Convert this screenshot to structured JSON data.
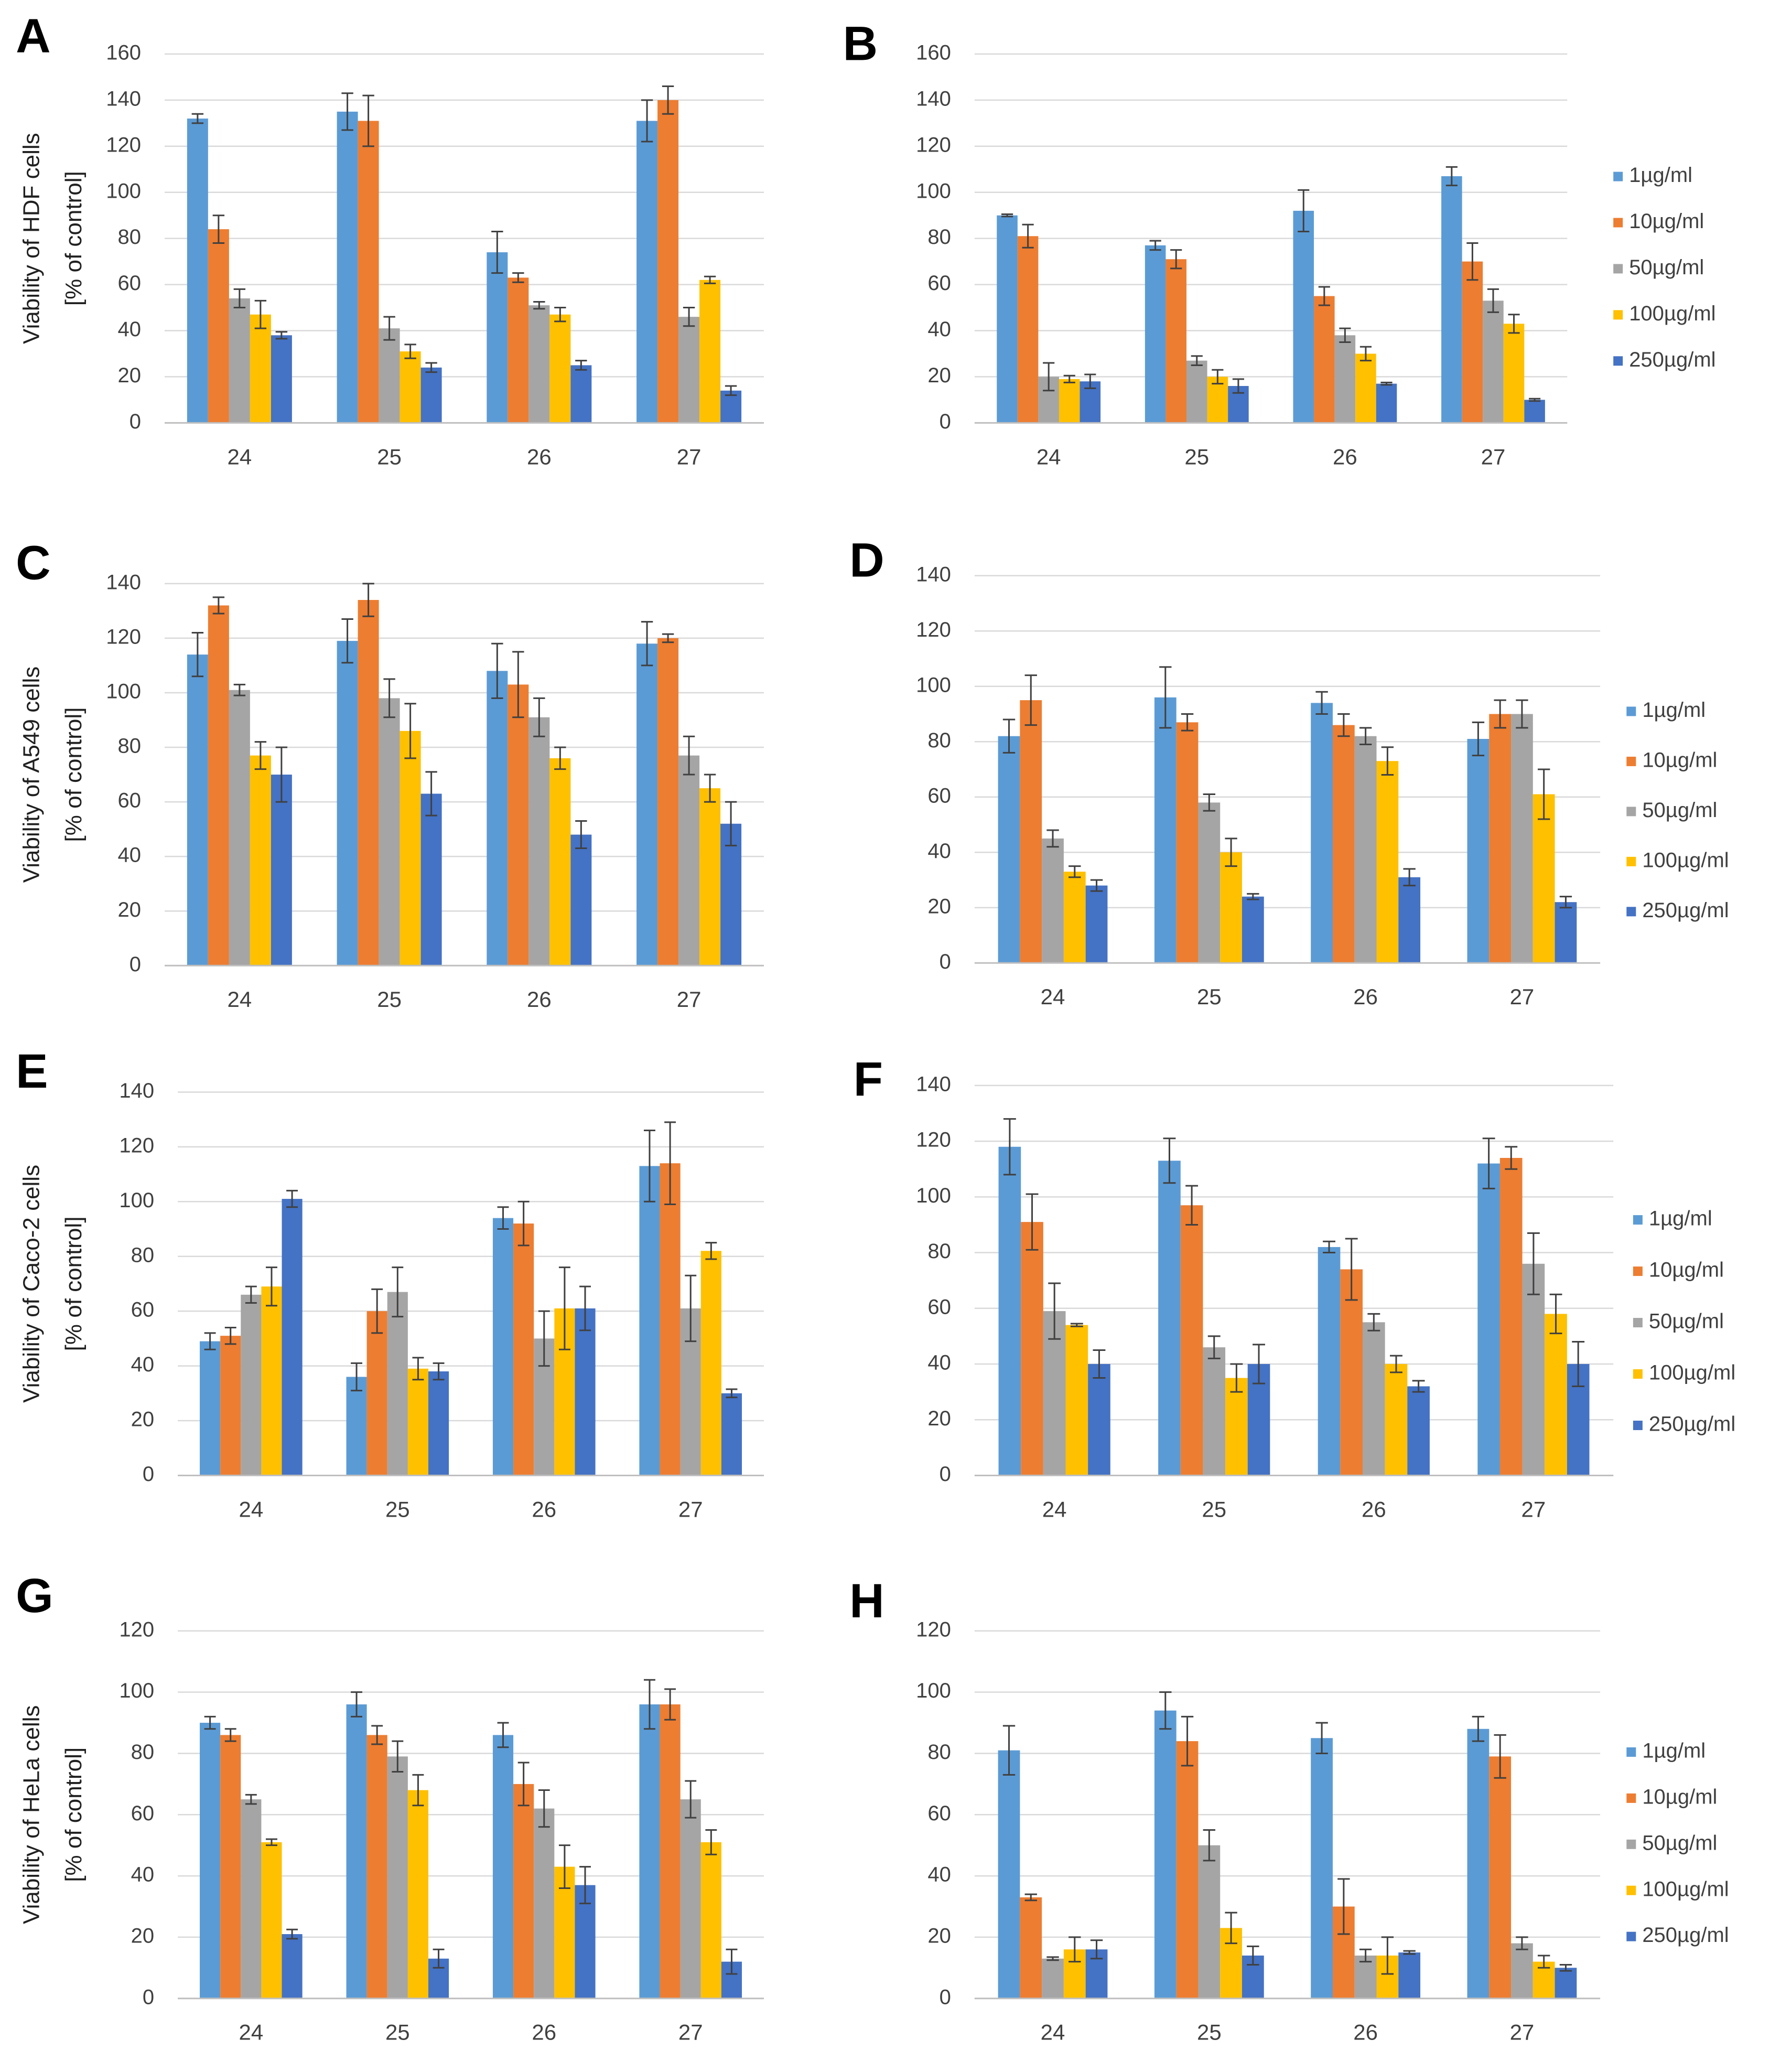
{
  "chart_data": [
    {
      "type": "bar",
      "panel": "A",
      "ylabel": [
        "Viability of HDF cells",
        "[% of control]"
      ],
      "categories": [
        "24",
        "25",
        "26",
        "27"
      ],
      "ylim": [
        0,
        160
      ],
      "yticks": [
        0,
        20,
        40,
        60,
        80,
        100,
        120,
        140,
        160
      ],
      "grid": true,
      "series": [
        {
          "color": "#5b9bd5",
          "values": [
            132,
            135,
            74,
            131
          ],
          "errors": [
            2,
            8,
            9,
            9
          ]
        },
        {
          "color": "#ed7d31",
          "values": [
            84,
            131,
            63,
            140
          ],
          "errors": [
            6,
            11,
            2,
            6
          ]
        },
        {
          "color": "#a5a5a5",
          "values": [
            54,
            41,
            51,
            46
          ],
          "errors": [
            4,
            5,
            1.5,
            4
          ]
        },
        {
          "color": "#ffc000",
          "values": [
            47,
            31,
            47,
            62
          ],
          "errors": [
            6,
            3,
            3,
            1.5
          ]
        },
        {
          "color": "#4472c4",
          "values": [
            38,
            24,
            25,
            14
          ],
          "errors": [
            1.5,
            2,
            2,
            2
          ]
        }
      ]
    },
    {
      "type": "bar",
      "panel": "B",
      "categories": [
        "24",
        "25",
        "26",
        "27"
      ],
      "ylim": [
        0,
        160
      ],
      "yticks": [
        0,
        20,
        40,
        60,
        80,
        100,
        120,
        140,
        160
      ],
      "grid": true,
      "legend": "right",
      "series": [
        {
          "name": "1µg/ml",
          "color": "#5b9bd5",
          "values": [
            90,
            77,
            92,
            107
          ],
          "errors": [
            0.5,
            2,
            9,
            4
          ]
        },
        {
          "name": "10µg/ml",
          "color": "#ed7d31",
          "values": [
            81,
            71,
            55,
            70
          ],
          "errors": [
            5,
            4,
            4,
            8
          ]
        },
        {
          "name": "50µg/ml",
          "color": "#a5a5a5",
          "values": [
            20,
            27,
            38,
            53
          ],
          "errors": [
            6,
            2,
            3,
            5
          ]
        },
        {
          "name": "100µg/ml",
          "color": "#ffc000",
          "values": [
            19,
            20,
            30,
            43
          ],
          "errors": [
            1.5,
            3,
            3,
            4
          ]
        },
        {
          "name": "250µg/ml",
          "color": "#4472c4",
          "values": [
            18,
            16,
            17,
            10
          ],
          "errors": [
            3,
            3,
            0.5,
            0.5
          ]
        }
      ]
    },
    {
      "type": "bar",
      "panel": "C",
      "ylabel": [
        "Viability of A549 cells",
        "[% of control]"
      ],
      "categories": [
        "24",
        "25",
        "26",
        "27"
      ],
      "ylim": [
        0,
        140
      ],
      "yticks": [
        0,
        20,
        40,
        60,
        80,
        100,
        120,
        140
      ],
      "grid": true,
      "series": [
        {
          "color": "#5b9bd5",
          "values": [
            114,
            119,
            108,
            118
          ],
          "errors": [
            8,
            8,
            10,
            8
          ]
        },
        {
          "color": "#ed7d31",
          "values": [
            132,
            134,
            103,
            120
          ],
          "errors": [
            3,
            6,
            12,
            1.5
          ]
        },
        {
          "color": "#a5a5a5",
          "values": [
            101,
            98,
            91,
            77
          ],
          "errors": [
            2,
            7,
            7,
            7
          ]
        },
        {
          "color": "#ffc000",
          "values": [
            77,
            86,
            76,
            65
          ],
          "errors": [
            5,
            10,
            4,
            5
          ]
        },
        {
          "color": "#4472c4",
          "values": [
            70,
            63,
            48,
            52
          ],
          "errors": [
            10,
            8,
            5,
            8
          ]
        }
      ]
    },
    {
      "type": "bar",
      "panel": "D",
      "categories": [
        "24",
        "25",
        "26",
        "27"
      ],
      "ylim": [
        0,
        140
      ],
      "yticks": [
        0,
        20,
        40,
        60,
        80,
        100,
        120,
        140
      ],
      "grid": true,
      "legend": "right",
      "series": [
        {
          "name": "1µg/ml",
          "color": "#5b9bd5",
          "values": [
            82,
            96,
            94,
            81
          ],
          "errors": [
            6,
            11,
            4,
            6
          ]
        },
        {
          "name": "10µg/ml",
          "color": "#ed7d31",
          "values": [
            95,
            87,
            86,
            90
          ],
          "errors": [
            9,
            3,
            4,
            5
          ]
        },
        {
          "name": "50µg/ml",
          "color": "#a5a5a5",
          "values": [
            45,
            58,
            82,
            90
          ],
          "errors": [
            3,
            3,
            3,
            5
          ]
        },
        {
          "name": "100µg/ml",
          "color": "#ffc000",
          "values": [
            33,
            40,
            73,
            61
          ],
          "errors": [
            2,
            5,
            5,
            9
          ]
        },
        {
          "name": "250µg/ml",
          "color": "#4472c4",
          "values": [
            28,
            24,
            31,
            22
          ],
          "errors": [
            2,
            1,
            3,
            2
          ]
        }
      ]
    },
    {
      "type": "bar",
      "panel": "E",
      "ylabel": [
        "Viability of Caco-2 cells",
        "[% of control]"
      ],
      "categories": [
        "24",
        "25",
        "26",
        "27"
      ],
      "ylim": [
        0,
        140
      ],
      "yticks": [
        0,
        20,
        40,
        60,
        80,
        100,
        120,
        140
      ],
      "grid": true,
      "series": [
        {
          "color": "#5b9bd5",
          "values": [
            49,
            36,
            94,
            113
          ],
          "errors": [
            3,
            5,
            4,
            13
          ]
        },
        {
          "color": "#ed7d31",
          "values": [
            51,
            60,
            92,
            114
          ],
          "errors": [
            3,
            8,
            8,
            15
          ]
        },
        {
          "color": "#a5a5a5",
          "values": [
            66,
            67,
            50,
            61
          ],
          "errors": [
            3,
            9,
            10,
            12
          ]
        },
        {
          "color": "#ffc000",
          "values": [
            69,
            39,
            61,
            82
          ],
          "errors": [
            7,
            4,
            15,
            3
          ]
        },
        {
          "color": "#4472c4",
          "values": [
            101,
            38,
            61,
            30
          ],
          "errors": [
            3,
            3,
            8,
            1.5
          ]
        }
      ]
    },
    {
      "type": "bar",
      "panel": "F",
      "categories": [
        "24",
        "25",
        "26",
        "27"
      ],
      "ylim": [
        0,
        140
      ],
      "yticks": [
        0,
        20,
        40,
        60,
        80,
        100,
        120,
        140
      ],
      "grid": true,
      "legend": "right",
      "series": [
        {
          "name": "1µg/ml",
          "color": "#5b9bd5",
          "values": [
            118,
            113,
            82,
            112
          ],
          "errors": [
            10,
            8,
            2,
            9
          ]
        },
        {
          "name": "10µg/ml",
          "color": "#ed7d31",
          "values": [
            91,
            97,
            74,
            114
          ],
          "errors": [
            10,
            7,
            11,
            4
          ]
        },
        {
          "name": "50µg/ml",
          "color": "#a5a5a5",
          "values": [
            59,
            46,
            55,
            76
          ],
          "errors": [
            10,
            4,
            3,
            11
          ]
        },
        {
          "name": "100µg/ml",
          "color": "#ffc000",
          "values": [
            54,
            35,
            40,
            58
          ],
          "errors": [
            0.5,
            5,
            3,
            7
          ]
        },
        {
          "name": "250µg/ml",
          "color": "#4472c4",
          "values": [
            40,
            40,
            32,
            40
          ],
          "errors": [
            5,
            7,
            2,
            8
          ]
        }
      ]
    },
    {
      "type": "bar",
      "panel": "G",
      "ylabel": [
        "Viability of HeLa cells",
        "[% of control]"
      ],
      "categories": [
        "24",
        "25",
        "26",
        "27"
      ],
      "ylim": [
        0,
        120
      ],
      "yticks": [
        0,
        20,
        40,
        60,
        80,
        100,
        120
      ],
      "grid": true,
      "series": [
        {
          "color": "#5b9bd5",
          "values": [
            90,
            96,
            86,
            96
          ],
          "errors": [
            2,
            4,
            4,
            8
          ]
        },
        {
          "color": "#ed7d31",
          "values": [
            86,
            86,
            70,
            96
          ],
          "errors": [
            2,
            3,
            7,
            5
          ]
        },
        {
          "color": "#a5a5a5",
          "values": [
            65,
            79,
            62,
            65
          ],
          "errors": [
            1.5,
            5,
            6,
            6
          ]
        },
        {
          "color": "#ffc000",
          "values": [
            51,
            68,
            43,
            51
          ],
          "errors": [
            1,
            5,
            7,
            4
          ]
        },
        {
          "color": "#4472c4",
          "values": [
            21,
            13,
            37,
            12
          ],
          "errors": [
            1.5,
            3,
            6,
            4
          ]
        }
      ]
    },
    {
      "type": "bar",
      "panel": "H",
      "categories": [
        "24",
        "25",
        "26",
        "27"
      ],
      "ylim": [
        0,
        120
      ],
      "yticks": [
        0,
        20,
        40,
        60,
        80,
        100,
        120
      ],
      "grid": true,
      "legend": "right",
      "series": [
        {
          "name": "1µg/ml",
          "color": "#5b9bd5",
          "values": [
            81,
            94,
            85,
            88
          ],
          "errors": [
            8,
            6,
            5,
            4
          ]
        },
        {
          "name": "10µg/ml",
          "color": "#ed7d31",
          "values": [
            33,
            84,
            30,
            79
          ],
          "errors": [
            1,
            8,
            9,
            7
          ]
        },
        {
          "name": "50µg/ml",
          "color": "#a5a5a5",
          "values": [
            13,
            50,
            14,
            18
          ],
          "errors": [
            0.5,
            5,
            2,
            2
          ]
        },
        {
          "name": "100µg/ml",
          "color": "#ffc000",
          "values": [
            16,
            23,
            14,
            12
          ],
          "errors": [
            4,
            5,
            6,
            2
          ]
        },
        {
          "name": "250µg/ml",
          "color": "#4472c4",
          "values": [
            16,
            14,
            15,
            10
          ],
          "errors": [
            3,
            3,
            0.5,
            1
          ]
        }
      ]
    }
  ]
}
